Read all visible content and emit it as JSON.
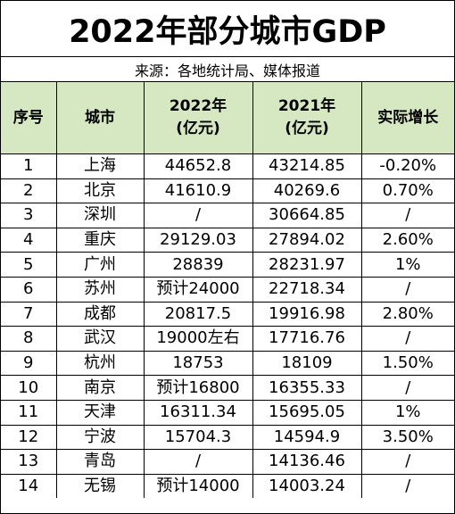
{
  "title": "2022年部分城市GDP",
  "source": "来源：各地统计局、媒体报道",
  "columns": {
    "rank": "序号",
    "city": "城市",
    "gdp2022_line1": "2022年",
    "gdp2022_line2": "(亿元)",
    "gdp2021_line1": "2021年",
    "gdp2021_line2": "(亿元)",
    "growth": "实际增长"
  },
  "rows": [
    {
      "rank": "1",
      "city": "上海",
      "gdp2022": "44652.8",
      "gdp2021": "43214.85",
      "growth": "-0.20%"
    },
    {
      "rank": "2",
      "city": "北京",
      "gdp2022": "41610.9",
      "gdp2021": "40269.6",
      "growth": "0.70%"
    },
    {
      "rank": "3",
      "city": "深圳",
      "gdp2022": "/",
      "gdp2021": "30664.85",
      "growth": "/"
    },
    {
      "rank": "4",
      "city": "重庆",
      "gdp2022": "29129.03",
      "gdp2021": "27894.02",
      "growth": "2.60%"
    },
    {
      "rank": "5",
      "city": "广州",
      "gdp2022": "28839",
      "gdp2021": "28231.97",
      "growth": "1%"
    },
    {
      "rank": "6",
      "city": "苏州",
      "gdp2022": "预计24000",
      "gdp2021": "22718.34",
      "growth": "/"
    },
    {
      "rank": "7",
      "city": "成都",
      "gdp2022": "20817.5",
      "gdp2021": "19916.98",
      "growth": "2.80%"
    },
    {
      "rank": "8",
      "city": "武汉",
      "gdp2022": "19000左右",
      "gdp2021": "17716.76",
      "growth": "/"
    },
    {
      "rank": "9",
      "city": "杭州",
      "gdp2022": "18753",
      "gdp2021": "18109",
      "growth": "1.50%"
    },
    {
      "rank": "10",
      "city": "南京",
      "gdp2022": "预计16800",
      "gdp2021": "16355.33",
      "growth": "/"
    },
    {
      "rank": "11",
      "city": "天津",
      "gdp2022": "16311.34",
      "gdp2021": "15695.05",
      "growth": "1%"
    },
    {
      "rank": "12",
      "city": "宁波",
      "gdp2022": "15704.3",
      "gdp2021": "14594.9",
      "growth": "3.50%"
    },
    {
      "rank": "13",
      "city": "青岛",
      "gdp2022": "/",
      "gdp2021": "14136.46",
      "growth": "/"
    },
    {
      "rank": "14",
      "city": "无锡",
      "gdp2022": "预计14000",
      "gdp2021": "14003.24",
      "growth": "/"
    }
  ],
  "colors": {
    "header_bg": "#d6e8c2",
    "border": "#000000",
    "text": "#000000"
  }
}
